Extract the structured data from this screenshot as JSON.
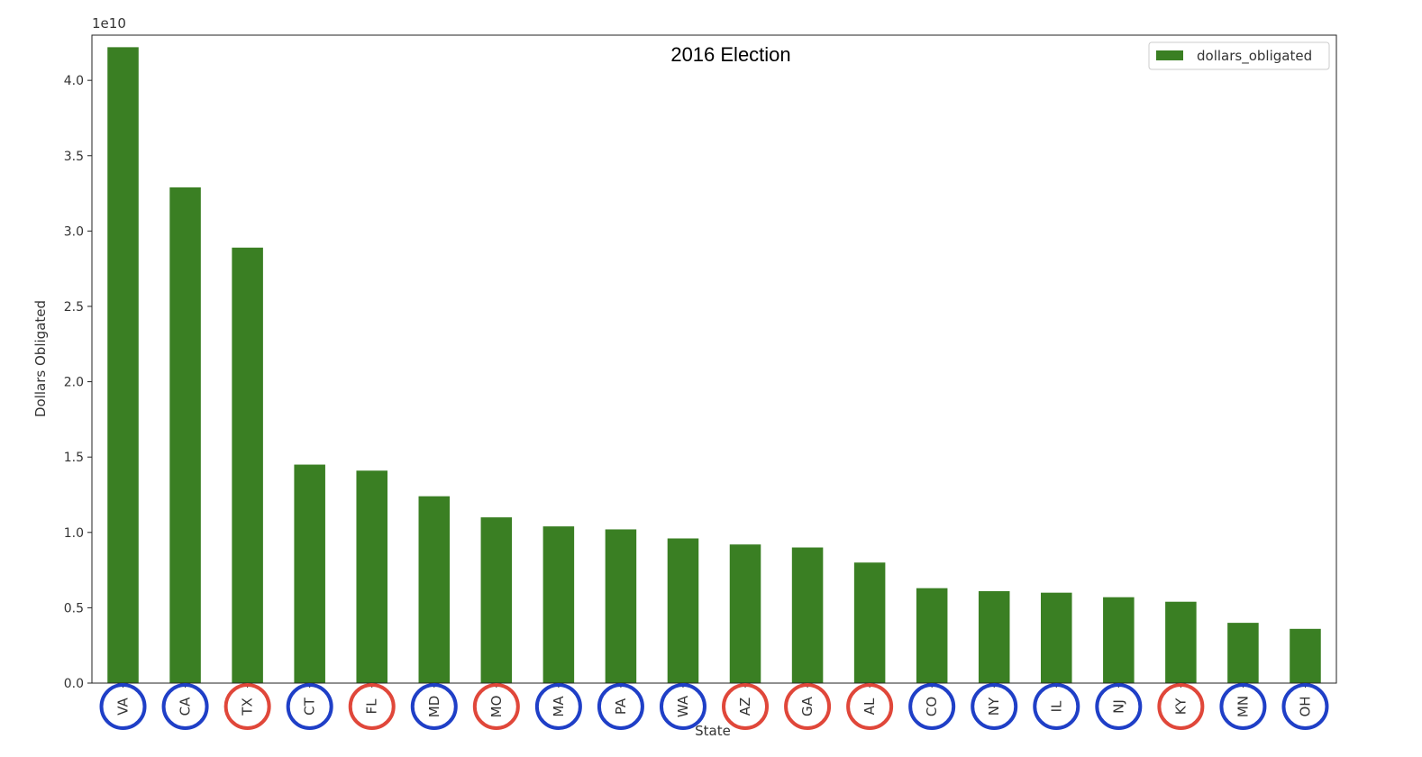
{
  "chart_data": {
    "type": "bar",
    "title": "2016 Election",
    "xlabel": "State",
    "ylabel": "Dollars Obligated",
    "y_exponent_label": "1e10",
    "y_scale": 10000000000,
    "ylim": [
      0,
      4.3
    ],
    "yticks": [
      0.0,
      0.5,
      1.0,
      1.5,
      2.0,
      2.5,
      3.0,
      3.5,
      4.0
    ],
    "ytick_labels": [
      "0.0",
      "0.5",
      "1.0",
      "1.5",
      "2.0",
      "2.5",
      "3.0",
      "3.5",
      "4.0"
    ],
    "categories": [
      "VA",
      "CA",
      "TX",
      "CT",
      "FL",
      "MD",
      "MO",
      "MA",
      "PA",
      "WA",
      "AZ",
      "GA",
      "AL",
      "CO",
      "NY",
      "IL",
      "NJ",
      "KY",
      "MN",
      "OH"
    ],
    "series": [
      {
        "name": "dollars_obligated",
        "color": "#3a7f23",
        "values": [
          4.22,
          3.29,
          2.89,
          1.45,
          1.41,
          1.24,
          1.1,
          1.04,
          1.02,
          0.96,
          0.92,
          0.9,
          0.8,
          0.63,
          0.61,
          0.6,
          0.57,
          0.54,
          0.4,
          0.36
        ]
      }
    ],
    "category_circle_colors": [
      "#1f3fc7",
      "#1f3fc7",
      "#e0473a",
      "#1f3fc7",
      "#e0473a",
      "#1f3fc7",
      "#e0473a",
      "#1f3fc7",
      "#1f3fc7",
      "#1f3fc7",
      "#e0473a",
      "#e0473a",
      "#e0473a",
      "#1f3fc7",
      "#1f3fc7",
      "#1f3fc7",
      "#1f3fc7",
      "#e0473a",
      "#1f3fc7",
      "#1f3fc7"
    ],
    "legend": {
      "position": "top-right",
      "entries": [
        "dollars_obligated"
      ]
    },
    "grid": false
  }
}
